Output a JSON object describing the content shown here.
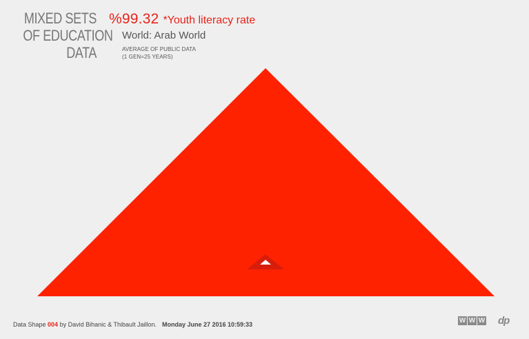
{
  "header": {
    "title_lines": [
      "MIXED SETS",
      "OF EDUCATION",
      "DATA"
    ],
    "metric_value": "%99.32",
    "metric_label": "*Youth literacy rate",
    "world": "World: Arab World",
    "sub_line_1": "AVERAGE OF PUBLIC DATA",
    "sub_line_2": "(1 GEN=25 YEARS)"
  },
  "shape": {
    "main_color": "#ff2200",
    "marker_outer_color": "#d71d0c",
    "marker_inner_color": "#ffffff"
  },
  "footer": {
    "prefix": "Data Shape ",
    "number": "004",
    "credit": " by David Bihanic & Thibault Jaillon.",
    "datetime": "Monday June 27 2016 10:59:33",
    "badge_letters": [
      "W",
      "W",
      "W"
    ],
    "logo_text": "dp"
  },
  "colors": {
    "background": "#efefef",
    "accent": "#e8231a",
    "text": "#555555"
  }
}
